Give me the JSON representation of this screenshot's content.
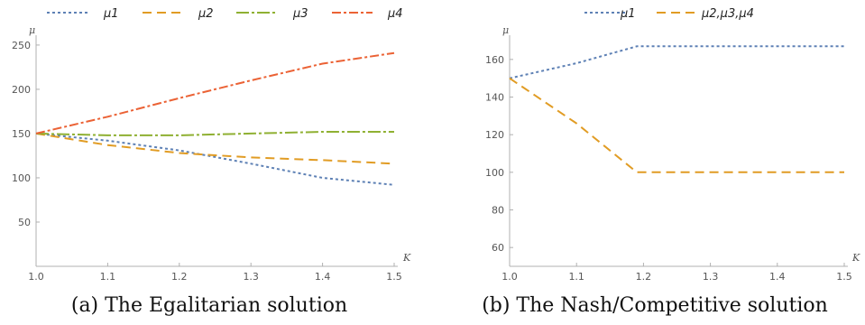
{
  "chart_data": [
    {
      "type": "line",
      "caption": "(a) The Egalitarian solution",
      "xlabel": "K",
      "ylabel": "μ",
      "xlim": [
        1.0,
        1.5
      ],
      "ylim": [
        0,
        255
      ],
      "xticks": [
        "1.0",
        "1.1",
        "1.2",
        "1.3",
        "1.4",
        "1.5"
      ],
      "yticks": [
        "50",
        "100",
        "150",
        "200",
        "250"
      ],
      "legend_position": "top",
      "series": [
        {
          "name": "μ1",
          "color": "#5E81B5",
          "dash": "3,3",
          "x": [
            1.0,
            1.1,
            1.2,
            1.3,
            1.4,
            1.5
          ],
          "y": [
            150,
            142,
            131,
            116,
            100,
            92
          ]
        },
        {
          "name": "μ2",
          "color": "#E19C24",
          "dash": "10,6",
          "x": [
            1.0,
            1.1,
            1.2,
            1.3,
            1.4,
            1.5
          ],
          "y": [
            150,
            137,
            128,
            123,
            120,
            116
          ]
        },
        {
          "name": "μ3",
          "color": "#8FB032",
          "dash": "14,3,3,3",
          "x": [
            1.0,
            1.1,
            1.2,
            1.3,
            1.4,
            1.5
          ],
          "y": [
            150,
            148,
            148,
            150,
            152,
            152
          ]
        },
        {
          "name": "μ4",
          "color": "#EB6235",
          "dash": "10,3,3,3",
          "x": [
            1.0,
            1.1,
            1.2,
            1.3,
            1.4,
            1.5
          ],
          "y": [
            150,
            169,
            190,
            210,
            229,
            241
          ]
        }
      ]
    },
    {
      "type": "line",
      "caption": "(b) The Nash/Competitive solution",
      "xlabel": "K",
      "ylabel": "μ",
      "xlim": [
        1.0,
        1.5
      ],
      "ylim": [
        50,
        170
      ],
      "xticks": [
        "1.0",
        "1.1",
        "1.2",
        "1.3",
        "1.4",
        "1.5"
      ],
      "yticks": [
        "60",
        "80",
        "100",
        "120",
        "140",
        "160"
      ],
      "legend_position": "top",
      "series": [
        {
          "name": "μ1",
          "color": "#5E81B5",
          "dash": "3,3",
          "x": [
            1.0,
            1.1,
            1.19,
            1.3,
            1.4,
            1.5
          ],
          "y": [
            150,
            158,
            167,
            167,
            167,
            167
          ]
        },
        {
          "name": "μ2,μ3,μ4",
          "color": "#E19C24",
          "dash": "10,6",
          "x": [
            1.0,
            1.1,
            1.19,
            1.3,
            1.4,
            1.5
          ],
          "y": [
            150,
            126,
            100,
            100,
            100,
            100
          ]
        }
      ]
    }
  ]
}
